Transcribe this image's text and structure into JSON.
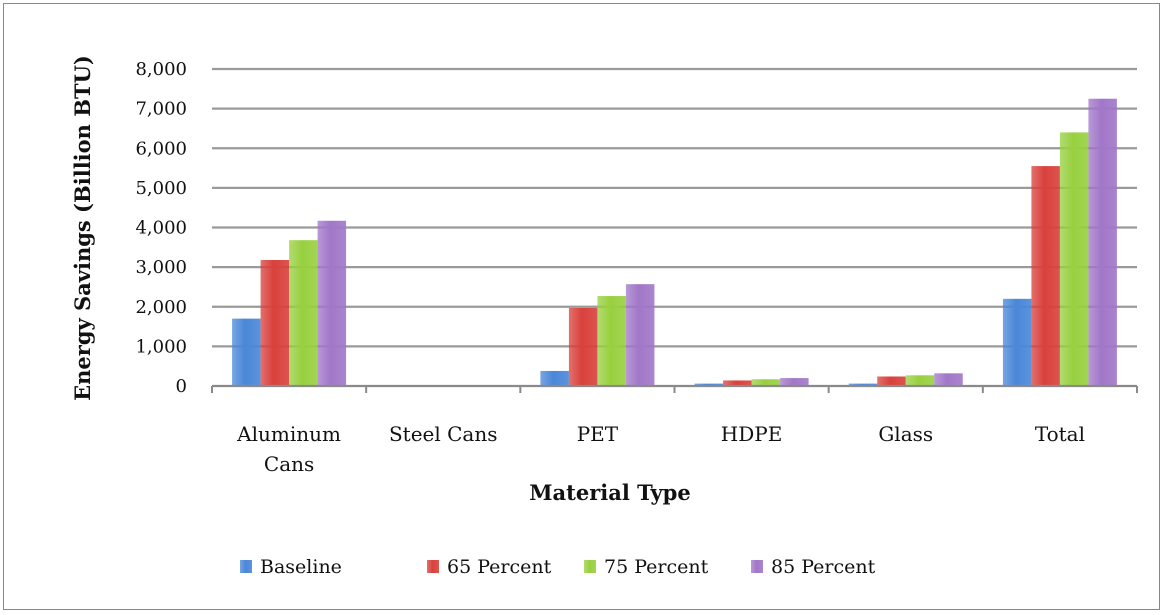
{
  "chart_data": {
    "type": "bar",
    "title": "",
    "xlabel": "Material Type",
    "ylabel": "Energy Savings (Billion BTU)",
    "ylim": [
      0,
      8000
    ],
    "yticks": [
      "0",
      "1,000",
      "2,000",
      "3,000",
      "4,000",
      "5,000",
      "6,000",
      "7,000",
      "8,000"
    ],
    "categories": [
      [
        "Aluminum",
        "Cans"
      ],
      [
        "Steel Cans"
      ],
      [
        "PET"
      ],
      [
        "HDPE"
      ],
      [
        "Glass"
      ],
      [
        "Total"
      ]
    ],
    "series": [
      {
        "name": "Baseline",
        "color": "#4a87d8",
        "values": [
          1700,
          0,
          380,
          60,
          60,
          2200
        ]
      },
      {
        "name": "65 Percent",
        "color": "#d9413c",
        "values": [
          3180,
          0,
          1970,
          140,
          240,
          5550
        ]
      },
      {
        "name": "75 Percent",
        "color": "#98d040",
        "values": [
          3680,
          0,
          2270,
          170,
          270,
          6400
        ]
      },
      {
        "name": "85 Percent",
        "color": "#a177c8",
        "values": [
          4170,
          0,
          2570,
          200,
          320,
          7250
        ]
      }
    ],
    "grid": true,
    "legend_position": "bottom"
  }
}
